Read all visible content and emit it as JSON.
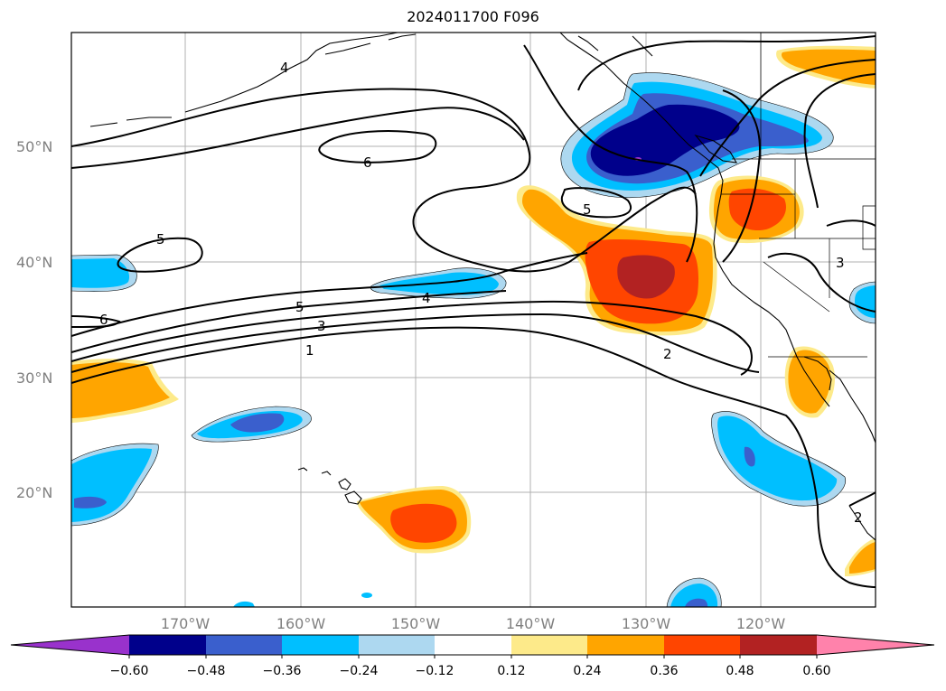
{
  "title": "2024011700 F096",
  "map": {
    "lat_labels": [
      "50°N",
      "40°N",
      "30°N",
      "20°N"
    ],
    "lon_labels": [
      "170°W",
      "160°W",
      "150°W",
      "140°W",
      "130°W",
      "120°W"
    ],
    "contour_labels": [
      "4",
      "6",
      "5",
      "5",
      "5",
      "6",
      "4",
      "3",
      "1",
      "2",
      "3",
      "2"
    ],
    "colors": {
      "deep_blue": "#00008b",
      "mid_blue": "#3a5fcd",
      "sky_blue": "#00bfff",
      "light_blue": "#add8f0",
      "light_yellow": "#fdea8a",
      "orange": "#ffa500",
      "red_orange": "#ff4500",
      "dark_red": "#b22222",
      "pink": "#ff82ab",
      "purple": "#9932cc"
    }
  },
  "colorbar": {
    "ticks": [
      "−0.60",
      "−0.48",
      "−0.36",
      "−0.24",
      "−0.12",
      "0.12",
      "0.24",
      "0.36",
      "0.48",
      "0.60"
    ]
  }
}
